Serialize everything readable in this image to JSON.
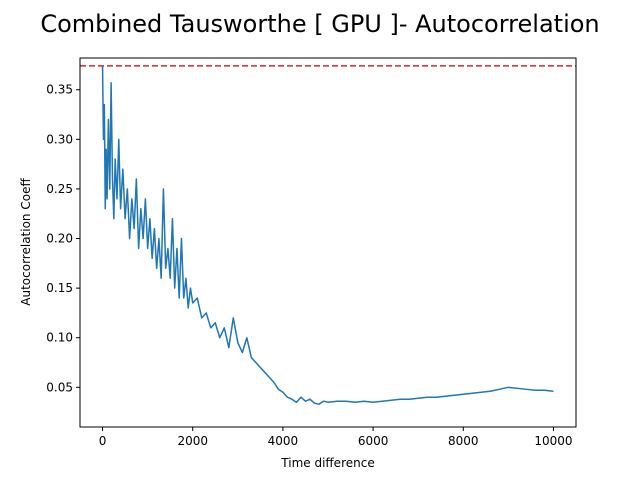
{
  "chart_data": {
    "type": "line",
    "title": "Combined Tausworthe [ GPU ]- Autocorrelation",
    "xlabel": "Time difference",
    "ylabel": "Autocorrelation Coeff",
    "xlim": [
      -500,
      10500
    ],
    "ylim": [
      0.01,
      0.382
    ],
    "xticks": [
      0,
      2000,
      4000,
      6000,
      8000,
      10000
    ],
    "yticks": [
      0.05,
      0.1,
      0.15,
      0.2,
      0.25,
      0.3,
      0.35
    ],
    "ytick_labels": [
      "0.05",
      "0.10",
      "0.15",
      "0.20",
      "0.25",
      "0.30",
      "0.35"
    ],
    "grid": false,
    "reference_line": {
      "y": 0.374,
      "color": "#d62728",
      "style": "dashed"
    },
    "series": [
      {
        "color": "#1f77b4",
        "x": [
          0,
          20,
          40,
          60,
          80,
          100,
          130,
          160,
          190,
          220,
          250,
          280,
          320,
          360,
          400,
          450,
          500,
          550,
          600,
          650,
          700,
          750,
          800,
          850,
          900,
          950,
          1000,
          1050,
          1100,
          1150,
          1200,
          1250,
          1300,
          1350,
          1400,
          1450,
          1500,
          1550,
          1600,
          1650,
          1700,
          1750,
          1800,
          1850,
          1900,
          1950,
          2000,
          2100,
          2200,
          2300,
          2400,
          2500,
          2600,
          2700,
          2800,
          2900,
          3000,
          3100,
          3200,
          3300,
          3400,
          3500,
          3600,
          3700,
          3800,
          3900,
          4000,
          4100,
          4200,
          4300,
          4400,
          4500,
          4600,
          4700,
          4800,
          4900,
          5000,
          5200,
          5400,
          5600,
          5800,
          6000,
          6200,
          6400,
          6600,
          6800,
          7000,
          7200,
          7400,
          7600,
          7800,
          8000,
          8200,
          8400,
          8600,
          8800,
          9000,
          9200,
          9400,
          9600,
          9800,
          10000
        ],
        "y": [
          0.374,
          0.3,
          0.335,
          0.23,
          0.29,
          0.24,
          0.32,
          0.25,
          0.357,
          0.26,
          0.22,
          0.28,
          0.24,
          0.3,
          0.23,
          0.27,
          0.22,
          0.25,
          0.2,
          0.24,
          0.21,
          0.26,
          0.19,
          0.23,
          0.2,
          0.24,
          0.19,
          0.22,
          0.18,
          0.21,
          0.17,
          0.2,
          0.16,
          0.25,
          0.17,
          0.19,
          0.16,
          0.22,
          0.15,
          0.19,
          0.14,
          0.2,
          0.14,
          0.16,
          0.13,
          0.15,
          0.135,
          0.14,
          0.12,
          0.125,
          0.11,
          0.115,
          0.1,
          0.11,
          0.09,
          0.12,
          0.095,
          0.085,
          0.1,
          0.08,
          0.075,
          0.07,
          0.065,
          0.06,
          0.055,
          0.048,
          0.045,
          0.04,
          0.038,
          0.035,
          0.04,
          0.036,
          0.038,
          0.034,
          0.033,
          0.036,
          0.035,
          0.036,
          0.036,
          0.035,
          0.036,
          0.035,
          0.036,
          0.037,
          0.038,
          0.038,
          0.039,
          0.04,
          0.04,
          0.041,
          0.042,
          0.043,
          0.044,
          0.045,
          0.046,
          0.048,
          0.05,
          0.049,
          0.048,
          0.047,
          0.047,
          0.046
        ]
      }
    ]
  }
}
